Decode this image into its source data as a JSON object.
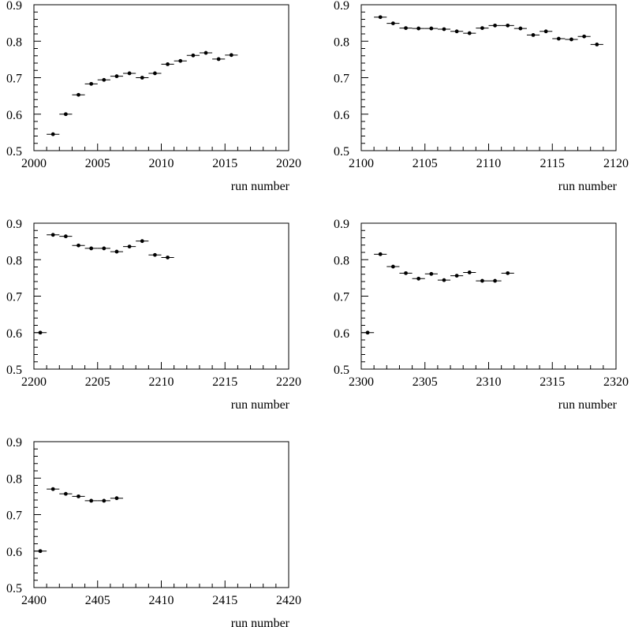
{
  "chart_data": [
    {
      "type": "scatter",
      "xlabel": "run number",
      "ylabel": "",
      "xlim": [
        2000,
        2020
      ],
      "ylim": [
        0.5,
        0.9
      ],
      "xticks": [
        "2000",
        "2005",
        "2010",
        "2015",
        "2020"
      ],
      "yticks": [
        "0.5",
        "0.6",
        "0.7",
        "0.8",
        "0.9"
      ],
      "x": [
        2001.5,
        2002.5,
        2003.5,
        2004.5,
        2005.5,
        2006.5,
        2007.5,
        2008.5,
        2009.5,
        2010.5,
        2011.5,
        2012.5,
        2013.5,
        2014.5,
        2015.5
      ],
      "y": [
        0.545,
        0.6,
        0.653,
        0.683,
        0.694,
        0.704,
        0.712,
        0.7,
        0.712,
        0.737,
        0.746,
        0.761,
        0.768,
        0.751,
        0.762
      ]
    },
    {
      "type": "scatter",
      "xlabel": "run number",
      "ylabel": "",
      "xlim": [
        2100,
        2120
      ],
      "ylim": [
        0.5,
        0.9
      ],
      "xticks": [
        "2100",
        "2105",
        "2110",
        "2115",
        "2120"
      ],
      "yticks": [
        "0.5",
        "0.6",
        "0.7",
        "0.8",
        "0.9"
      ],
      "x": [
        2101.5,
        2102.5,
        2103.5,
        2104.5,
        2105.5,
        2106.5,
        2107.5,
        2108.5,
        2109.5,
        2110.5,
        2111.5,
        2112.5,
        2113.5,
        2114.5,
        2115.5,
        2116.5,
        2117.5,
        2118.5
      ],
      "y": [
        0.866,
        0.849,
        0.836,
        0.835,
        0.835,
        0.833,
        0.827,
        0.822,
        0.836,
        0.843,
        0.843,
        0.835,
        0.817,
        0.827,
        0.807,
        0.805,
        0.813,
        0.791
      ]
    },
    {
      "type": "scatter",
      "xlabel": "run number",
      "ylabel": "",
      "xlim": [
        2200,
        2220
      ],
      "ylim": [
        0.5,
        0.9
      ],
      "xticks": [
        "2200",
        "2205",
        "2210",
        "2215",
        "2220"
      ],
      "yticks": [
        "0.5",
        "0.6",
        "0.7",
        "0.8",
        "0.9"
      ],
      "x": [
        2200.5,
        2201.5,
        2202.5,
        2203.5,
        2204.5,
        2205.5,
        2206.5,
        2207.5,
        2208.5,
        2209.5,
        2210.5
      ],
      "y": [
        0.6,
        0.868,
        0.864,
        0.839,
        0.831,
        0.831,
        0.822,
        0.836,
        0.851,
        0.813,
        0.806
      ]
    },
    {
      "type": "scatter",
      "xlabel": "run number",
      "ylabel": "",
      "xlim": [
        2300,
        2320
      ],
      "ylim": [
        0.5,
        0.9
      ],
      "xticks": [
        "2300",
        "2305",
        "2310",
        "2315",
        "2320"
      ],
      "yticks": [
        "0.5",
        "0.6",
        "0.7",
        "0.8",
        "0.9"
      ],
      "x": [
        2300.5,
        2301.5,
        2302.5,
        2303.5,
        2304.5,
        2305.5,
        2306.5,
        2307.5,
        2308.5,
        2309.5,
        2310.5,
        2311.5
      ],
      "y": [
        0.6,
        0.815,
        0.781,
        0.763,
        0.748,
        0.761,
        0.744,
        0.756,
        0.765,
        0.742,
        0.742,
        0.763
      ]
    },
    {
      "type": "scatter",
      "xlabel": "run number",
      "ylabel": "",
      "xlim": [
        2400,
        2420
      ],
      "ylim": [
        0.5,
        0.9
      ],
      "xticks": [
        "2400",
        "2405",
        "2410",
        "2415",
        "2420"
      ],
      "yticks": [
        "0.5",
        "0.6",
        "0.7",
        "0.8",
        "0.9"
      ],
      "x": [
        2400.5,
        2401.5,
        2402.5,
        2403.5,
        2404.5,
        2405.5,
        2406.5
      ],
      "y": [
        0.6,
        0.77,
        0.757,
        0.75,
        0.738,
        0.738,
        0.745
      ]
    }
  ]
}
